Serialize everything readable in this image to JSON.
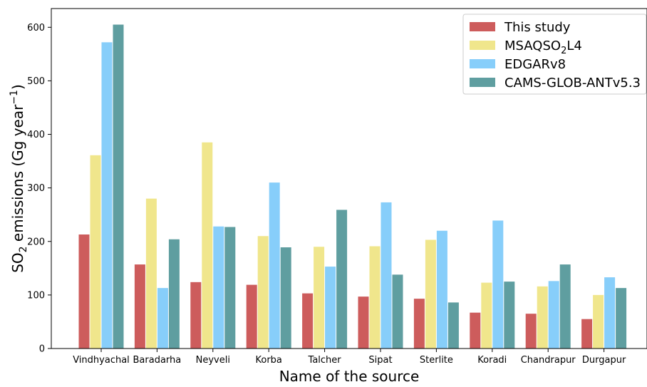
{
  "chart_data": {
    "type": "bar",
    "xlabel": "Name of the source",
    "ylabel": {
      "prefix": "SO",
      "sub": "2",
      "middle": " emissions (Gg year",
      "sup": "−1",
      "suffix": ")"
    },
    "ylim": [
      0,
      635
    ],
    "yticks": [
      0,
      100,
      200,
      300,
      400,
      500,
      600
    ],
    "grid": false,
    "legend_position": "top-right",
    "categories": [
      "Vindhyachal",
      "Baradarha",
      "Neyveli",
      "Korba",
      "Talcher",
      "Sipat",
      "Sterlite",
      "Koradi",
      "Chandrapur",
      "Durgapur"
    ],
    "series": [
      {
        "name": "This study",
        "name_parts": {
          "main": "This study"
        },
        "color": "#cd5c5c",
        "values": [
          213,
          157,
          124,
          119,
          103,
          97,
          93,
          67,
          65,
          55
        ]
      },
      {
        "name": "MSAQSO2L4",
        "name_parts": {
          "main": "MSAQSO",
          "sub": "2",
          "rest": "L4"
        },
        "color": "#f0e68c",
        "values": [
          361,
          280,
          385,
          210,
          190,
          191,
          203,
          123,
          116,
          100
        ]
      },
      {
        "name": "EDGARv8",
        "name_parts": {
          "main": "EDGARv8"
        },
        "color": "#87cefa",
        "values": [
          572,
          113,
          228,
          310,
          153,
          273,
          220,
          239,
          126,
          133
        ]
      },
      {
        "name": "CAMS-GLOB-ANTv5.3",
        "name_parts": {
          "main": "CAMS-GLOB-ANTv5.3"
        },
        "color": "#5f9ea0",
        "values": [
          605,
          204,
          227,
          189,
          259,
          138,
          86,
          125,
          157,
          113
        ]
      }
    ]
  }
}
